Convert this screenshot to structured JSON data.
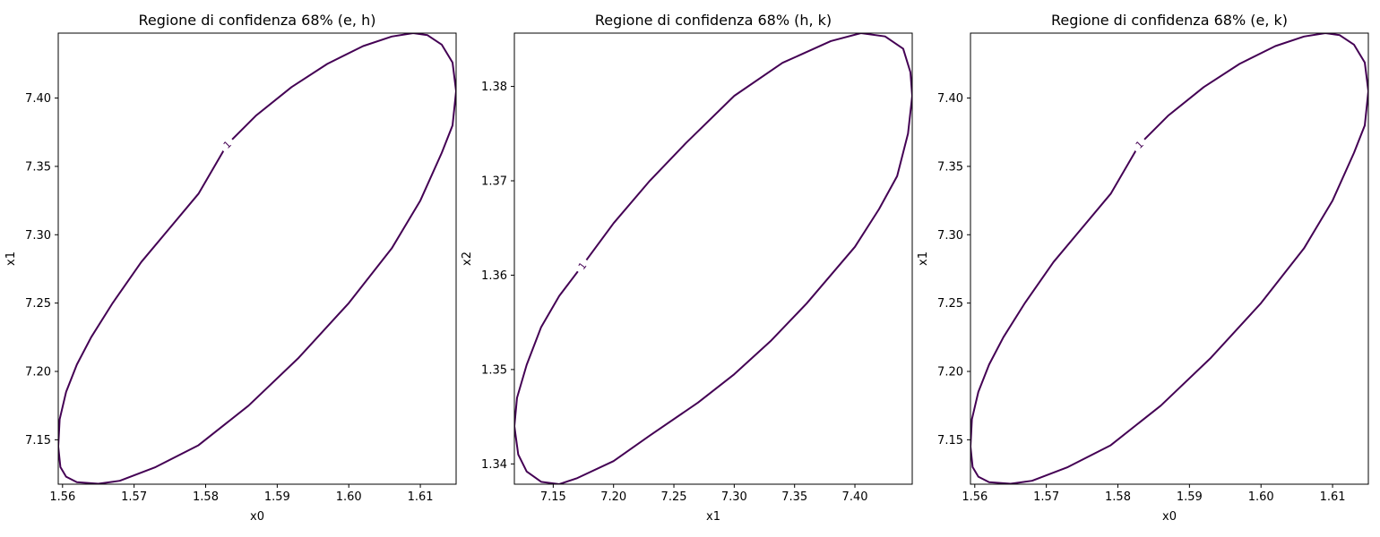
{
  "chart_data": [
    {
      "type": "line",
      "title": "Regione di confidenza 68% (e, h)",
      "xlabel": "x0",
      "ylabel": "x1",
      "xlim": [
        1.5594,
        1.615
      ],
      "ylim": [
        7.1175,
        7.4475
      ],
      "xticks": [
        1.56,
        1.57,
        1.58,
        1.59,
        1.6,
        1.61
      ],
      "xtick_labels": [
        "1.56",
        "1.57",
        "1.58",
        "1.59",
        "1.60",
        "1.61"
      ],
      "yticks": [
        7.15,
        7.2,
        7.25,
        7.3,
        7.35,
        7.4
      ],
      "ytick_labels": [
        "7.15",
        "7.20",
        "7.25",
        "7.30",
        "7.35",
        "7.40"
      ],
      "series": [
        {
          "color": "#440154",
          "contour_level": "1",
          "label_point": [
            1.583,
            7.366
          ],
          "points": [
            [
              1.583,
              7.366
            ],
            [
              1.587,
              7.387
            ],
            [
              1.592,
              7.408
            ],
            [
              1.597,
              7.425
            ],
            [
              1.602,
              7.438
            ],
            [
              1.606,
              7.445
            ],
            [
              1.609,
              7.4475
            ],
            [
              1.611,
              7.446
            ],
            [
              1.613,
              7.439
            ],
            [
              1.6145,
              7.426
            ],
            [
              1.615,
              7.405
            ],
            [
              1.6145,
              7.38
            ],
            [
              1.613,
              7.36
            ],
            [
              1.61,
              7.325
            ],
            [
              1.606,
              7.29
            ],
            [
              1.6,
              7.25
            ],
            [
              1.593,
              7.21
            ],
            [
              1.586,
              7.175
            ],
            [
              1.579,
              7.146
            ],
            [
              1.573,
              7.13
            ],
            [
              1.568,
              7.12
            ],
            [
              1.565,
              7.1178
            ],
            [
              1.562,
              7.119
            ],
            [
              1.5605,
              7.123
            ],
            [
              1.5597,
              7.13
            ],
            [
              1.5594,
              7.145
            ],
            [
              1.5596,
              7.165
            ],
            [
              1.5605,
              7.185
            ],
            [
              1.562,
              7.205
            ],
            [
              1.564,
              7.225
            ],
            [
              1.567,
              7.25
            ],
            [
              1.571,
              7.28
            ],
            [
              1.575,
              7.305
            ],
            [
              1.579,
              7.33
            ],
            [
              1.583,
              7.366
            ]
          ]
        }
      ]
    },
    {
      "type": "line",
      "title": "Regione di confidenza 68% (h, k)",
      "xlabel": "x1",
      "ylabel": "x2",
      "xlim": [
        7.1178,
        7.4475
      ],
      "ylim": [
        1.33785,
        1.38565
      ],
      "xticks": [
        7.15,
        7.2,
        7.25,
        7.3,
        7.35,
        7.4
      ],
      "xtick_labels": [
        "7.15",
        "7.20",
        "7.25",
        "7.30",
        "7.35",
        "7.40"
      ],
      "yticks": [
        1.34,
        1.35,
        1.36,
        1.37,
        1.38
      ],
      "ytick_labels": [
        "1.34",
        "1.35",
        "1.36",
        "1.37",
        "1.38"
      ],
      "series": [
        {
          "color": "#440154",
          "contour_level": "1",
          "label_point": [
            7.174,
            1.361
          ],
          "points": [
            [
              7.174,
              1.361
            ],
            [
              7.2,
              1.3655
            ],
            [
              7.23,
              1.37
            ],
            [
              7.26,
              1.374
            ],
            [
              7.3,
              1.379
            ],
            [
              7.34,
              1.3825
            ],
            [
              7.38,
              1.3848
            ],
            [
              7.405,
              1.38565
            ],
            [
              7.425,
              1.3853
            ],
            [
              7.44,
              1.384
            ],
            [
              7.446,
              1.3815
            ],
            [
              7.4475,
              1.379
            ],
            [
              7.444,
              1.375
            ],
            [
              7.435,
              1.3705
            ],
            [
              7.42,
              1.367
            ],
            [
              7.4,
              1.363
            ],
            [
              7.36,
              1.357
            ],
            [
              7.33,
              1.353
            ],
            [
              7.3,
              1.3495
            ],
            [
              7.27,
              1.3465
            ],
            [
              7.23,
              1.343
            ],
            [
              7.2,
              1.3403
            ],
            [
              7.17,
              1.3385
            ],
            [
              7.155,
              1.33785
            ],
            [
              7.14,
              1.3381
            ],
            [
              7.128,
              1.3392
            ],
            [
              7.121,
              1.341
            ],
            [
              7.1178,
              1.344
            ],
            [
              7.12,
              1.347
            ],
            [
              7.128,
              1.3505
            ],
            [
              7.14,
              1.3545
            ],
            [
              7.155,
              1.3578
            ],
            [
              7.174,
              1.361
            ]
          ]
        }
      ]
    },
    {
      "type": "line",
      "title": "Regione di confidenza 68% (e, k)",
      "xlabel": "x0",
      "ylabel": "x1",
      "xlim": [
        1.5594,
        1.615
      ],
      "ylim": [
        7.1175,
        7.4475
      ],
      "xticks": [
        1.56,
        1.57,
        1.58,
        1.59,
        1.6,
        1.61
      ],
      "xtick_labels": [
        "1.56",
        "1.57",
        "1.58",
        "1.59",
        "1.60",
        "1.61"
      ],
      "yticks": [
        7.15,
        7.2,
        7.25,
        7.3,
        7.35,
        7.4
      ],
      "ytick_labels": [
        "7.15",
        "7.20",
        "7.25",
        "7.30",
        "7.35",
        "7.40"
      ],
      "series": [
        {
          "color": "#440154",
          "contour_level": "1",
          "label_point": [
            1.583,
            7.366
          ],
          "points": [
            [
              1.583,
              7.366
            ],
            [
              1.587,
              7.387
            ],
            [
              1.592,
              7.408
            ],
            [
              1.597,
              7.425
            ],
            [
              1.602,
              7.438
            ],
            [
              1.606,
              7.445
            ],
            [
              1.609,
              7.4475
            ],
            [
              1.611,
              7.446
            ],
            [
              1.613,
              7.439
            ],
            [
              1.6145,
              7.426
            ],
            [
              1.615,
              7.405
            ],
            [
              1.6145,
              7.38
            ],
            [
              1.613,
              7.36
            ],
            [
              1.61,
              7.325
            ],
            [
              1.606,
              7.29
            ],
            [
              1.6,
              7.25
            ],
            [
              1.593,
              7.21
            ],
            [
              1.586,
              7.175
            ],
            [
              1.579,
              7.146
            ],
            [
              1.573,
              7.13
            ],
            [
              1.568,
              7.12
            ],
            [
              1.565,
              7.1178
            ],
            [
              1.562,
              7.119
            ],
            [
              1.5605,
              7.123
            ],
            [
              1.5597,
              7.13
            ],
            [
              1.5594,
              7.145
            ],
            [
              1.5596,
              7.165
            ],
            [
              1.5605,
              7.185
            ],
            [
              1.562,
              7.205
            ],
            [
              1.564,
              7.225
            ],
            [
              1.567,
              7.25
            ],
            [
              1.571,
              7.28
            ],
            [
              1.575,
              7.305
            ],
            [
              1.579,
              7.33
            ],
            [
              1.583,
              7.366
            ]
          ]
        }
      ]
    }
  ]
}
